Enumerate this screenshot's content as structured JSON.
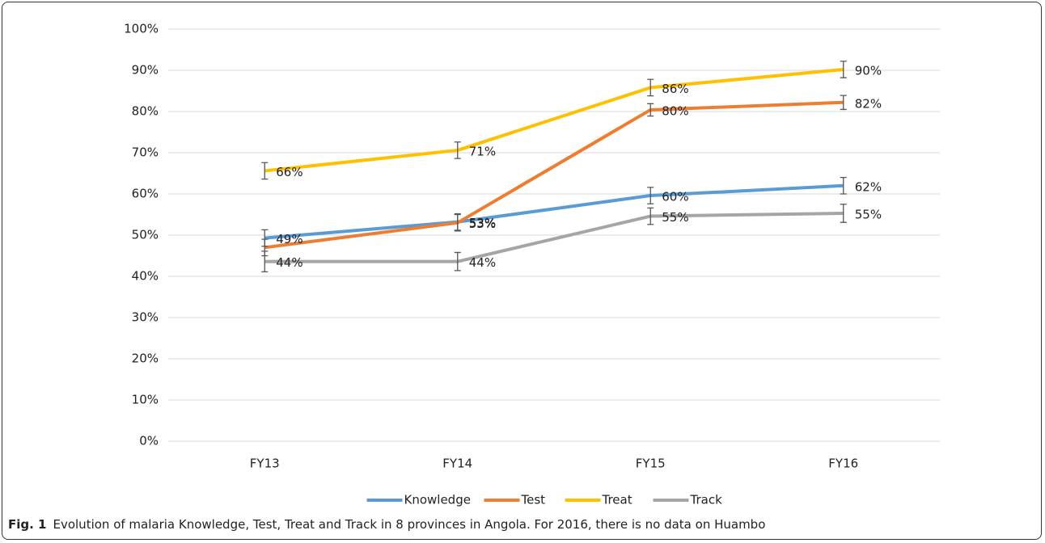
{
  "chart_data": {
    "type": "line",
    "categories": [
      "FY13",
      "FY14",
      "FY15",
      "FY16"
    ],
    "series": [
      {
        "name": "Knowledge",
        "color": "#5b9bd5",
        "values": [
          49.3,
          53.2,
          59.6,
          62
        ],
        "errors": [
          2,
          2,
          2,
          2
        ],
        "value_labels": [
          "49%",
          "53%",
          "60%",
          "62%"
        ]
      },
      {
        "name": "Test",
        "color": "#ed7d31",
        "values": [
          47,
          53,
          80.4,
          82.2
        ],
        "errors": [
          2,
          2,
          1.5,
          1.7
        ],
        "value_labels": [
          null,
          "53%",
          "80%",
          "82%"
        ]
      },
      {
        "name": "Treat",
        "color": "#ffc000",
        "values": [
          65.6,
          70.6,
          85.8,
          90.2
        ],
        "errors": [
          2,
          2,
          2,
          2
        ],
        "value_labels": [
          "66%",
          "71%",
          "86%",
          "90%"
        ]
      },
      {
        "name": "Track",
        "color": "#a5a5a5",
        "values": [
          43.6,
          43.6,
          54.6,
          55.3
        ],
        "errors": [
          2.5,
          2.2,
          2,
          2.2
        ],
        "value_labels": [
          "44%",
          "44%",
          "55%",
          "55%"
        ]
      }
    ],
    "ylim": [
      0,
      100
    ],
    "yticks": [
      {
        "value": 0,
        "label": "0%"
      },
      {
        "value": 10,
        "label": "10%"
      },
      {
        "value": 20,
        "label": "20%"
      },
      {
        "value": 30,
        "label": "30%"
      },
      {
        "value": 40,
        "label": "40%"
      },
      {
        "value": 50,
        "label": "50%"
      },
      {
        "value": 60,
        "label": "60%"
      },
      {
        "value": 70,
        "label": "70%"
      },
      {
        "value": 80,
        "label": "80%"
      },
      {
        "value": 90,
        "label": "90%"
      },
      {
        "value": 100,
        "label": "100%"
      }
    ],
    "grid": true,
    "legend": "bottom"
  },
  "caption": {
    "label": "Fig. 1",
    "text": "Evolution of malaria Knowledge, Test, Treat and Track in 8 provinces in Angola. For 2016, there is no data on Huambo"
  }
}
